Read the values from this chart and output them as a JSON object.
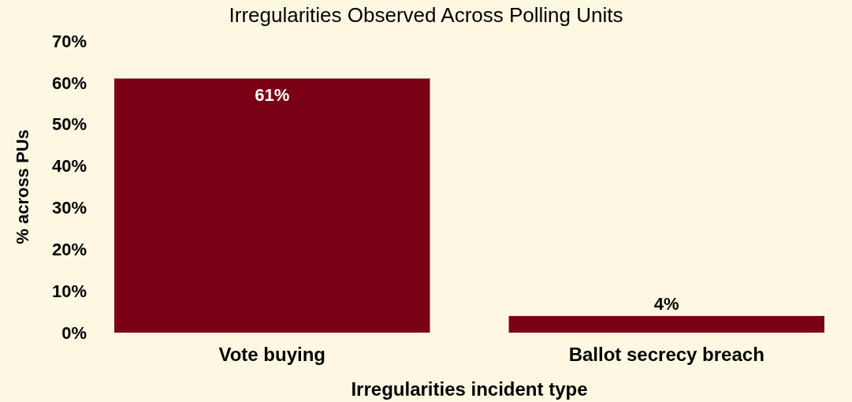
{
  "chart_data": {
    "type": "bar",
    "title": "Irregularities Observed Across Polling Units",
    "xlabel": "Irregularities incident type",
    "ylabel": "% across PUs",
    "categories": [
      "Vote buying",
      "Ballot secrecy breach"
    ],
    "values": [
      61,
      4
    ],
    "color": "#7a0016",
    "value_labels": [
      "61%",
      "4%"
    ],
    "ylim": [
      0,
      70
    ],
    "yticks": [
      {
        "value": 0,
        "label": "0%"
      },
      {
        "value": 10,
        "label": "10%"
      },
      {
        "value": 20,
        "label": "20%"
      },
      {
        "value": 30,
        "label": "30%"
      },
      {
        "value": 40,
        "label": "40%"
      },
      {
        "value": 50,
        "label": "50%"
      },
      {
        "value": 60,
        "label": "60%"
      },
      {
        "value": 70,
        "label": "70%"
      }
    ],
    "grid": false
  }
}
